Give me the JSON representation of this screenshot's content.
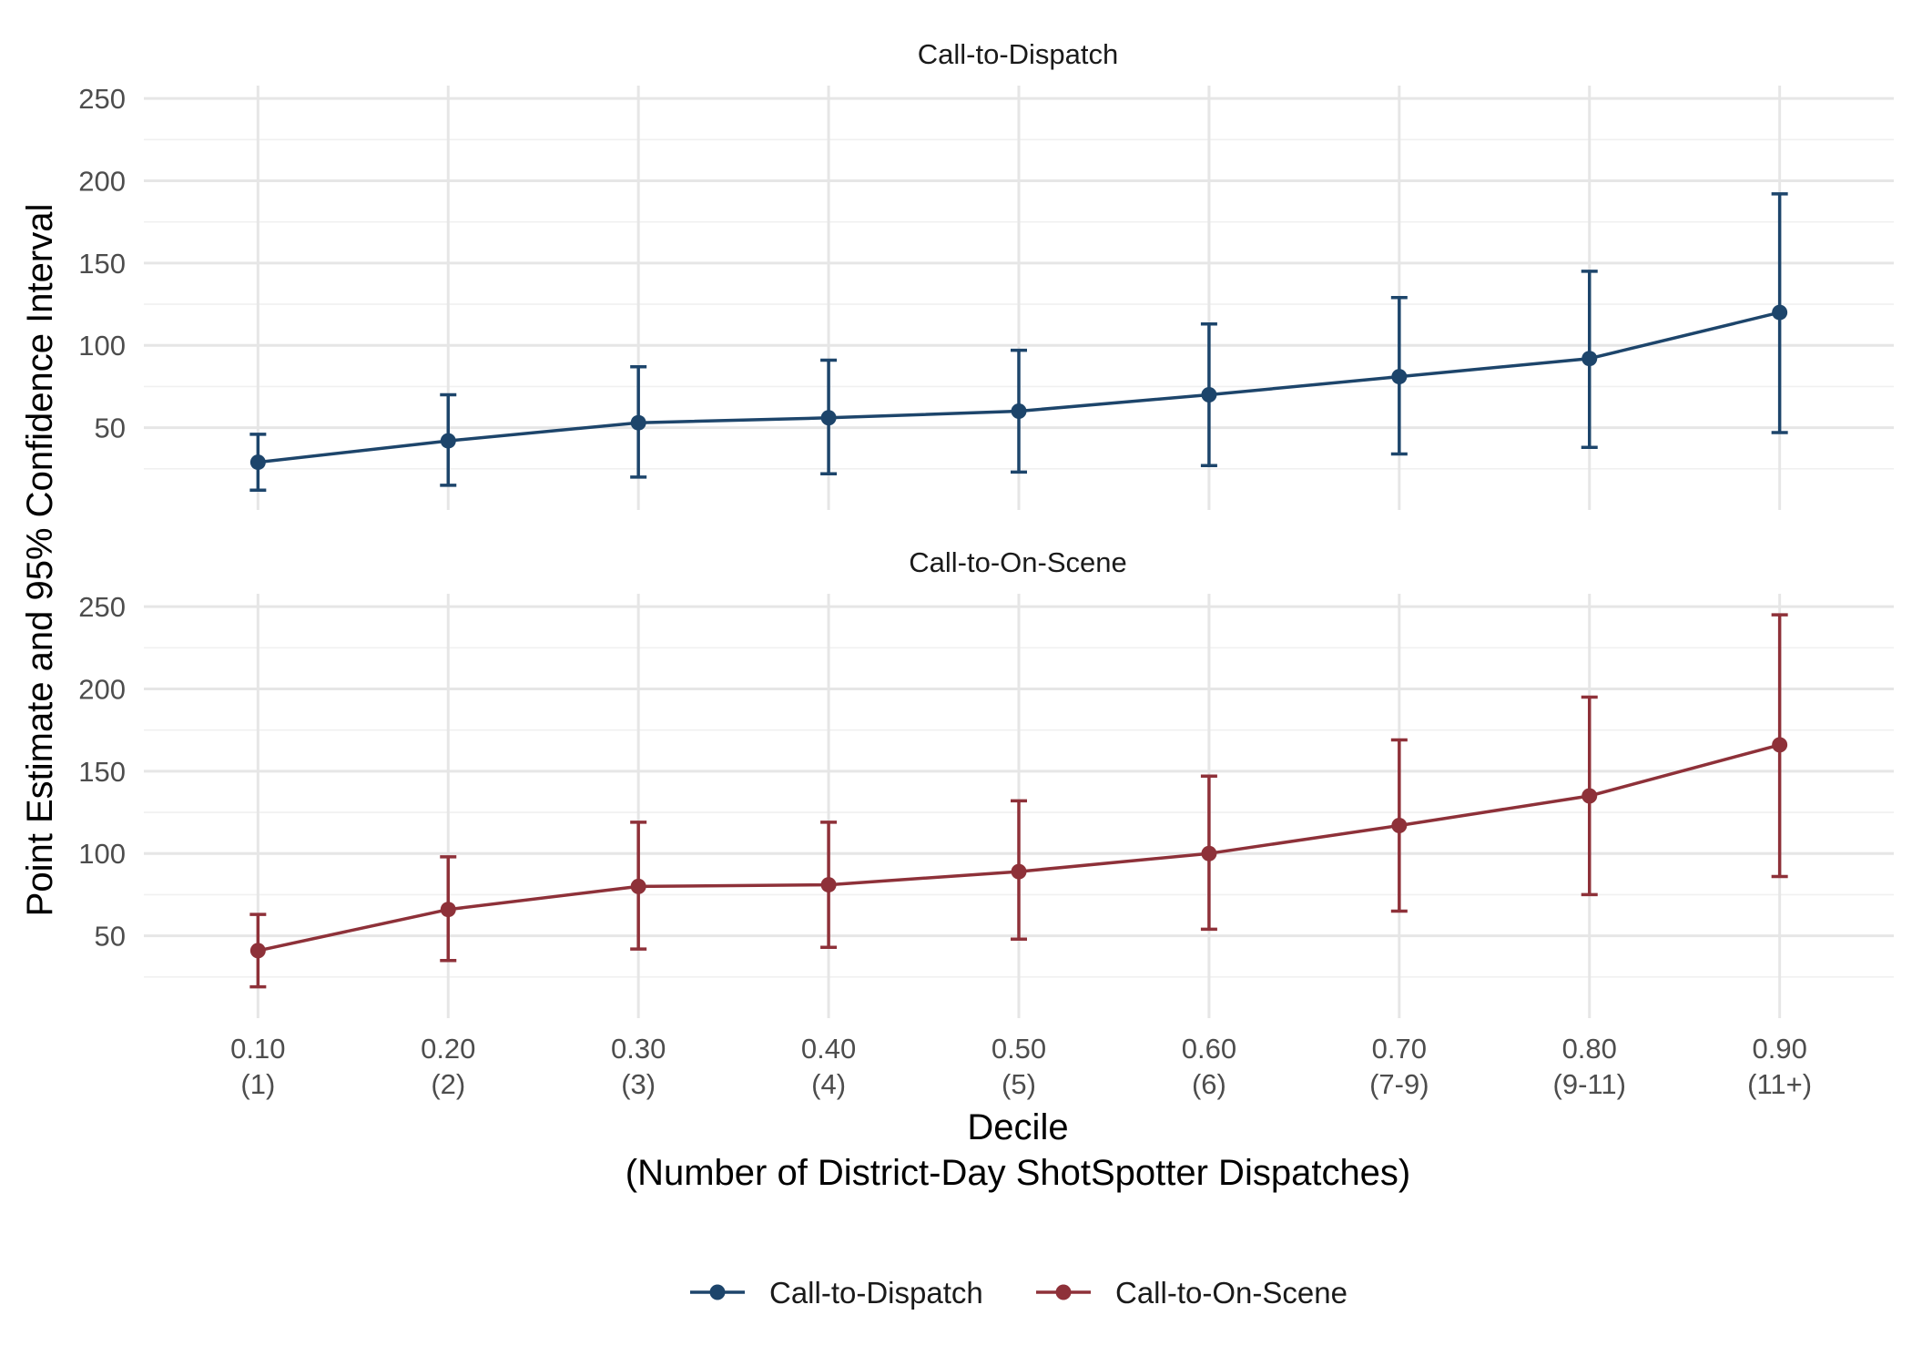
{
  "chart_data": {
    "type": "line",
    "facets": [
      {
        "title": "Call-to-Dispatch",
        "series": "Call-to-Dispatch",
        "points": [
          {
            "x": 0.1,
            "y": 29,
            "lo": 12,
            "hi": 46
          },
          {
            "x": 0.2,
            "y": 42,
            "lo": 15,
            "hi": 70
          },
          {
            "x": 0.3,
            "y": 53,
            "lo": 20,
            "hi": 87
          },
          {
            "x": 0.4,
            "y": 56,
            "lo": 22,
            "hi": 91
          },
          {
            "x": 0.5,
            "y": 60,
            "lo": 23,
            "hi": 97
          },
          {
            "x": 0.6,
            "y": 70,
            "lo": 27,
            "hi": 113
          },
          {
            "x": 0.7,
            "y": 81,
            "lo": 34,
            "hi": 129
          },
          {
            "x": 0.8,
            "y": 92,
            "lo": 38,
            "hi": 145
          },
          {
            "x": 0.9,
            "y": 120,
            "lo": 47,
            "hi": 192
          }
        ]
      },
      {
        "title": "Call-to-On-Scene",
        "series": "Call-to-On-Scene",
        "points": [
          {
            "x": 0.1,
            "y": 41,
            "lo": 19,
            "hi": 63
          },
          {
            "x": 0.2,
            "y": 66,
            "lo": 35,
            "hi": 98
          },
          {
            "x": 0.3,
            "y": 80,
            "lo": 42,
            "hi": 119
          },
          {
            "x": 0.4,
            "y": 81,
            "lo": 43,
            "hi": 119
          },
          {
            "x": 0.5,
            "y": 89,
            "lo": 48,
            "hi": 132
          },
          {
            "x": 0.6,
            "y": 100,
            "lo": 54,
            "hi": 147
          },
          {
            "x": 0.7,
            "y": 117,
            "lo": 65,
            "hi": 169
          },
          {
            "x": 0.8,
            "y": 135,
            "lo": 75,
            "hi": 195
          },
          {
            "x": 0.9,
            "y": 166,
            "lo": 86,
            "hi": 245
          }
        ]
      }
    ],
    "x_ticks": [
      {
        "value": 0.1,
        "line1": "0.10",
        "line2": "(1)"
      },
      {
        "value": 0.2,
        "line1": "0.20",
        "line2": "(2)"
      },
      {
        "value": 0.3,
        "line1": "0.30",
        "line2": "(3)"
      },
      {
        "value": 0.4,
        "line1": "0.40",
        "line2": "(4)"
      },
      {
        "value": 0.5,
        "line1": "0.50",
        "line2": "(5)"
      },
      {
        "value": 0.6,
        "line1": "0.60",
        "line2": "(6)"
      },
      {
        "value": 0.7,
        "line1": "0.70",
        "line2": "(7-9)"
      },
      {
        "value": 0.8,
        "line1": "0.80",
        "line2": "(9-11)"
      },
      {
        "value": 0.9,
        "line1": "0.90",
        "line2": "(11+)"
      }
    ],
    "y_ticks": [
      50,
      100,
      150,
      200,
      250
    ],
    "xlim": [
      0.04,
      0.96
    ],
    "ylim": [
      0,
      260
    ],
    "xlabel_line1": "Decile",
    "xlabel_line2": "(Number of District-Day ShotSpotter Dispatches)",
    "ylabel": "Point Estimate and 95% Confidence Interval",
    "legend": {
      "position": "bottom",
      "entries": [
        {
          "label": "Call-to-Dispatch",
          "color": "#1d456b"
        },
        {
          "label": "Call-to-On-Scene",
          "color": "#8e3139"
        }
      ]
    },
    "grid": true
  }
}
